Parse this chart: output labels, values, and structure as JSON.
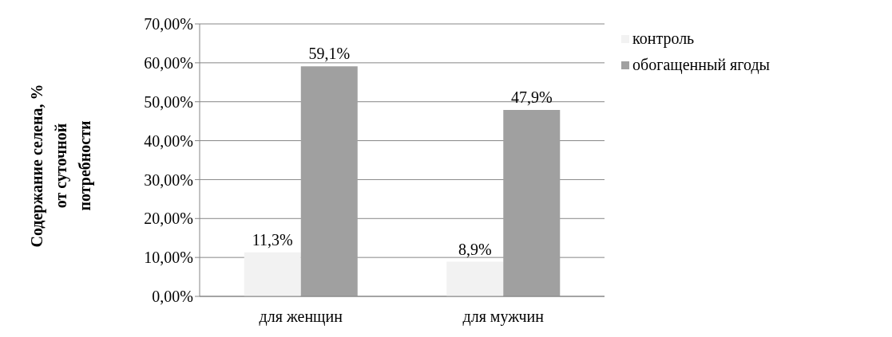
{
  "chart_data": {
    "type": "bar",
    "ylabel": "Содержание селена, %\nот суточной\nпотребности",
    "categories": [
      "для женщин",
      "для мужчин"
    ],
    "series": [
      {
        "name": "контроль",
        "color": "#f2f2f2",
        "values": [
          11.3,
          8.9
        ],
        "value_labels": [
          "11,3%",
          "8,9%"
        ]
      },
      {
        "name": "обогащенный ягоды",
        "color": "#a0a0a0",
        "values": [
          59.1,
          47.9
        ],
        "value_labels": [
          "59,1%",
          "47,9%"
        ]
      }
    ],
    "ylim": [
      0,
      70
    ],
    "yticks": [
      {
        "value": 0,
        "label": "0,00%"
      },
      {
        "value": 10,
        "label": "10,00%"
      },
      {
        "value": 20,
        "label": "20,00%"
      },
      {
        "value": 30,
        "label": "30,00%"
      },
      {
        "value": 40,
        "label": "40,00%"
      },
      {
        "value": 50,
        "label": "50,00%"
      },
      {
        "value": 60,
        "label": "60,00%"
      },
      {
        "value": 70,
        "label": "70,00%"
      }
    ],
    "grid": "y",
    "legend": "top right"
  }
}
